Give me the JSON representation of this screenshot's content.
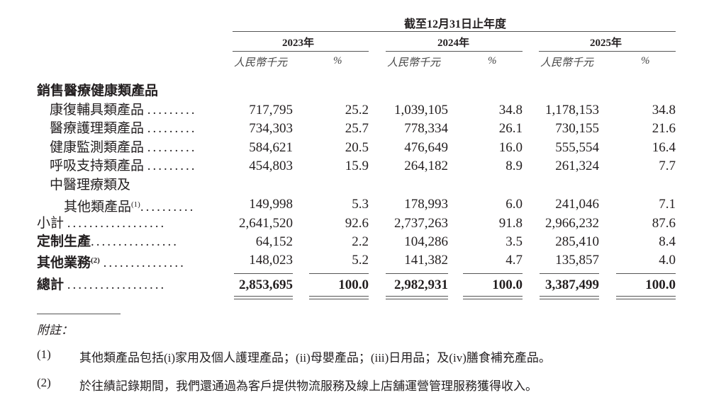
{
  "header": {
    "period": "截至12月31日止年度",
    "years": [
      "2023年",
      "2024年",
      "2025年"
    ],
    "amount_unit": "人民幣千元",
    "pct_unit": "%"
  },
  "section_title": "銷售醫療健康類產品",
  "rows": [
    {
      "label": "康復輔具類產品",
      "dots": ".........",
      "values": [
        "717,795",
        "25.2",
        "1,039,105",
        "34.8",
        "1,178,153",
        "34.8"
      ]
    },
    {
      "label": "醫療護理類產品",
      "dots": ".........",
      "values": [
        "734,303",
        "25.7",
        "778,334",
        "26.1",
        "730,155",
        "21.6"
      ]
    },
    {
      "label": "健康監測類產品",
      "dots": ".........",
      "values": [
        "584,621",
        "20.5",
        "476,649",
        "16.0",
        "555,554",
        "16.4"
      ]
    },
    {
      "label": "呼吸支持類產品",
      "dots": ".........",
      "values": [
        "454,803",
        "15.9",
        "264,182",
        "8.9",
        "261,324",
        "7.7"
      ]
    },
    {
      "label": "中醫理療類及",
      "label2": "其他類產品",
      "note": "(1)",
      "dots": "..........",
      "values": [
        "149,998",
        "5.3",
        "178,993",
        "6.0",
        "241,046",
        "7.1"
      ]
    },
    {
      "label": "小計",
      "dots": "..................",
      "values": [
        "2,641,520",
        "92.6",
        "2,737,263",
        "91.8",
        "2,966,232",
        "87.6"
      ]
    },
    {
      "label": "定制生產",
      "dots": "................",
      "values": [
        "64,152",
        "2.2",
        "104,286",
        "3.5",
        "285,410",
        "8.4"
      ]
    },
    {
      "label": "其他業務",
      "note": "(2)",
      "dots": "...............",
      "values": [
        "148,023",
        "5.2",
        "141,382",
        "4.7",
        "135,857",
        "4.0"
      ]
    },
    {
      "label": "總計",
      "dots": "..................",
      "values": [
        "2,853,695",
        "100.0",
        "2,982,931",
        "100.0",
        "3,387,499",
        "100.0"
      ]
    }
  ],
  "notes": {
    "title": "附註：",
    "items": [
      {
        "num": "(1)",
        "text": "其他類產品包括(i)家用及個人護理產品；(ii)母嬰產品；(iii)日用品；及(iv)膳食補充產品。"
      },
      {
        "num": "(2)",
        "text": "於往績記錄期間，我們還通過為客戶提供物流服務及線上店舖運營管理服務獲得收入。"
      }
    ]
  }
}
